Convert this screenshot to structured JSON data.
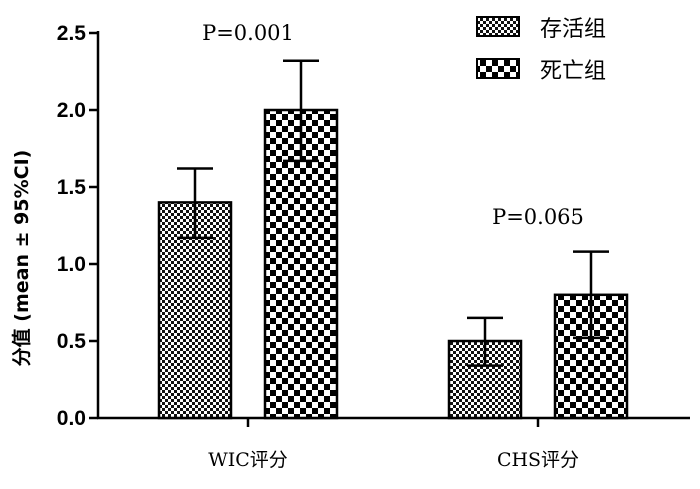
{
  "chart_data": {
    "type": "bar",
    "title": "",
    "xlabel": "",
    "ylabel": "分值 (mean ± 95%CI)",
    "ylim": [
      0,
      2.5
    ],
    "yticks": [
      "0.0",
      "0.5",
      "1.0",
      "1.5",
      "2.0",
      "2.5"
    ],
    "categories": [
      "WIC评分",
      "CHS评分"
    ],
    "series": [
      {
        "name": "存活组",
        "pattern": "fine-checker",
        "values": [
          1.4,
          0.5
        ],
        "ci_lower": [
          1.17,
          0.34
        ],
        "ci_upper": [
          1.62,
          0.65
        ]
      },
      {
        "name": "死亡组",
        "pattern": "coarse-checker",
        "values": [
          2.0,
          0.8
        ],
        "ci_lower": [
          1.67,
          0.52
        ],
        "ci_upper": [
          2.32,
          1.08
        ]
      }
    ],
    "annotations": [
      {
        "category": "WIC评分",
        "text": "P=0.001"
      },
      {
        "category": "CHS评分",
        "text": "P=0.065"
      }
    ],
    "legend_position": "top-right",
    "grid": false
  }
}
